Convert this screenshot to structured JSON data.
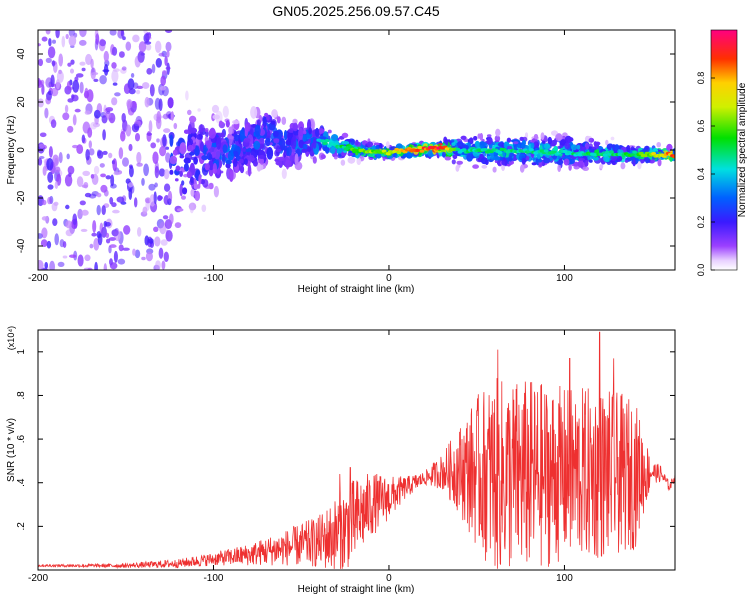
{
  "figure": {
    "title": "GN05.2025.256.09.57.C45"
  },
  "chart_data": [
    {
      "type": "heatmap",
      "title": "GN05.2025.256.09.57.C45",
      "xlabel": "Height of straight line (km)",
      "ylabel": "Frequency (Hz)",
      "xlim": [
        -200,
        163
      ],
      "ylim": [
        -50,
        50
      ],
      "x_ticks": [
        -200,
        -100,
        0,
        100
      ],
      "y_ticks": [
        -40,
        -20,
        0,
        20,
        40
      ],
      "colorbar": {
        "label": "Normalized spectral amplitude",
        "range": [
          0.0,
          1.0
        ],
        "ticks": [
          0.0,
          0.2,
          0.4,
          0.6,
          0.8
        ]
      },
      "ridge": {
        "description_points": [
          {
            "x": -200,
            "center": 0,
            "spread": 45,
            "amp": 0.28
          },
          {
            "x": -140,
            "center": 0,
            "spread": 40,
            "amp": 0.26
          },
          {
            "x": -115,
            "center": -4,
            "spread": 18,
            "amp": 0.25
          },
          {
            "x": -90,
            "center": 0,
            "spread": 10,
            "amp": 0.3
          },
          {
            "x": -70,
            "center": 5,
            "spread": 10,
            "amp": 0.3
          },
          {
            "x": -55,
            "center": 2,
            "spread": 8,
            "amp": 0.3
          },
          {
            "x": -40,
            "center": 4,
            "spread": 6,
            "amp": 0.4
          },
          {
            "x": -20,
            "center": 0,
            "spread": 3,
            "amp": 0.55
          },
          {
            "x": 0,
            "center": -1,
            "spread": 2,
            "amp": 0.65
          },
          {
            "x": 30,
            "center": 1,
            "spread": 2,
            "amp": 0.95
          },
          {
            "x": 40,
            "center": 0,
            "spread": 5,
            "amp": 0.45
          },
          {
            "x": 100,
            "center": -1,
            "spread": 5,
            "amp": 0.45
          },
          {
            "x": 140,
            "center": -2,
            "spread": 3,
            "amp": 0.5
          },
          {
            "x": 163,
            "center": -2,
            "spread": 2,
            "amp": 0.85
          }
        ]
      }
    },
    {
      "type": "line",
      "xlabel": "Height of straight line (km)",
      "ylabel": "SNR (10 * v/v)",
      "y_multiplier": "(x10⁴)",
      "xlim": [
        -200,
        163
      ],
      "ylim": [
        0,
        1.1
      ],
      "x_ticks": [
        -200,
        -100,
        0,
        100
      ],
      "y_ticks": [
        0.2,
        0.4,
        0.6,
        0.8,
        1.0
      ],
      "series": [
        {
          "name": "SNR",
          "color": "#ee3030",
          "envelope_x": [
            -200,
            -150,
            -120,
            -100,
            -80,
            -60,
            -40,
            -30,
            -20,
            -10,
            0,
            10,
            20,
            30,
            40,
            50,
            60,
            80,
            100,
            120,
            140,
            150,
            155,
            160,
            163
          ],
          "envelope_base": [
            0.02,
            0.02,
            0.03,
            0.05,
            0.07,
            0.1,
            0.13,
            0.16,
            0.22,
            0.3,
            0.33,
            0.38,
            0.42,
            0.45,
            0.46,
            0.45,
            0.43,
            0.43,
            0.44,
            0.44,
            0.44,
            0.45,
            0.44,
            0.38,
            0.43
          ],
          "envelope_amp": [
            0.005,
            0.01,
            0.02,
            0.03,
            0.05,
            0.08,
            0.12,
            0.18,
            0.2,
            0.15,
            0.1,
            0.05,
            0.03,
            0.08,
            0.2,
            0.35,
            0.45,
            0.45,
            0.4,
            0.4,
            0.35,
            0.05,
            0.04,
            0.02,
            0.02
          ],
          "peaks": [
            {
              "x": 62,
              "y": 1.01
            },
            {
              "x": 120,
              "y": 1.09
            },
            {
              "x": 103,
              "y": 0.97
            },
            {
              "x": 128,
              "y": 0.97
            },
            {
              "x": -22,
              "y": 0.47
            },
            {
              "x": -28,
              "y": 0.44
            }
          ]
        }
      ]
    }
  ]
}
